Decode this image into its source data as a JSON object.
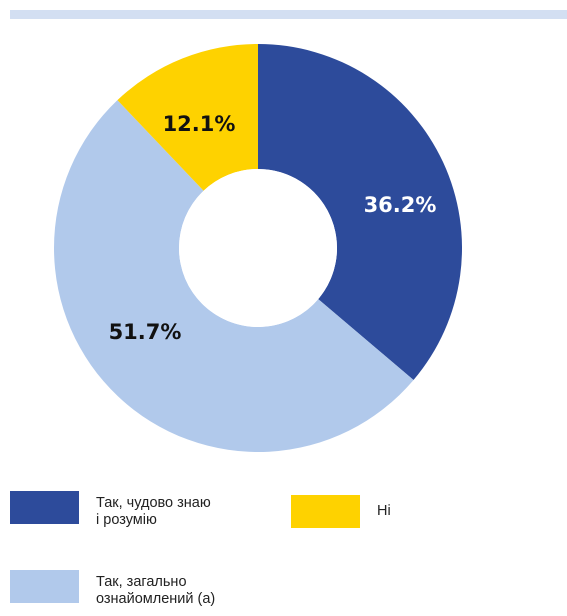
{
  "colors": {
    "top_bar": "#d3dff2",
    "hole": "#ffffff",
    "label_dark": "#111111",
    "label_light": "#ffffff"
  },
  "chart_data": {
    "type": "pie",
    "donut": true,
    "slices": [
      {
        "label": "Так, чудово знаю\nі розумію",
        "value": 36.2,
        "display": "36.2%",
        "color": "#2d4b9b",
        "label_color": "#ffffff"
      },
      {
        "label": "Так, загально\nознайомлений (а)",
        "value": 51.7,
        "display": "51.7%",
        "color": "#b1c9eb",
        "label_color": "#111111"
      },
      {
        "label": "Ні",
        "value": 12.1,
        "display": "12.1%",
        "color": "#fed200",
        "label_color": "#111111"
      }
    ],
    "legend": "bottom"
  }
}
